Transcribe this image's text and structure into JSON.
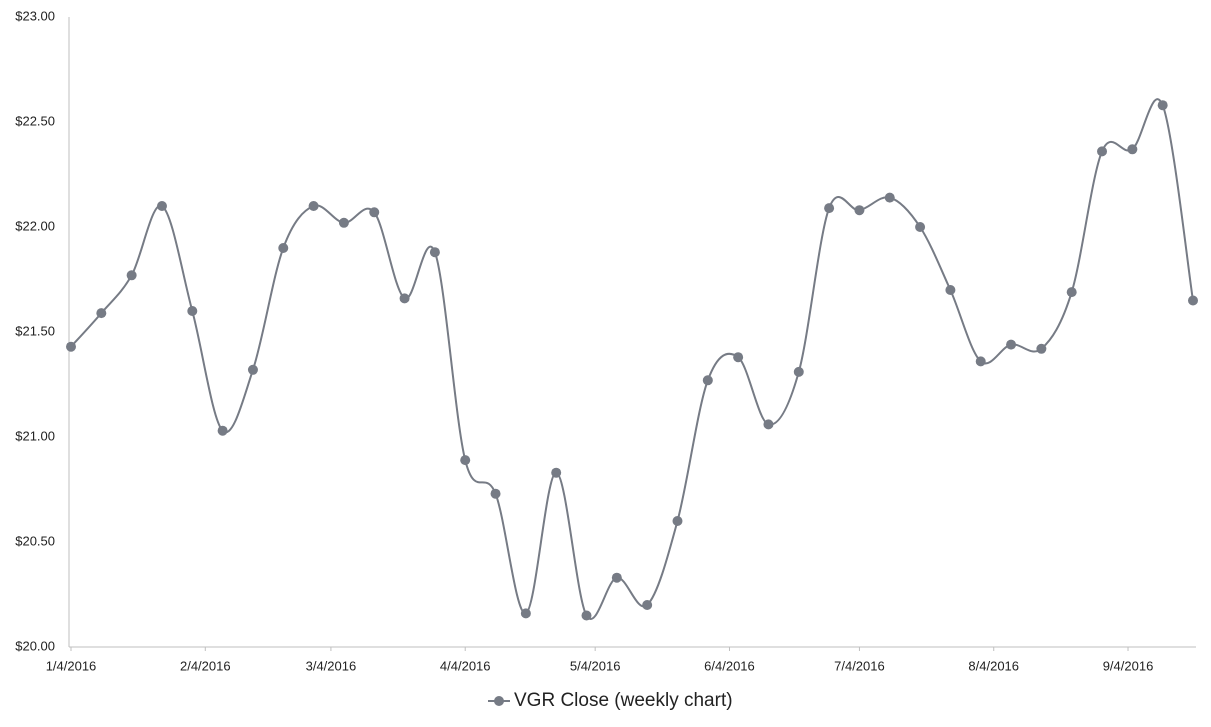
{
  "chart_data": {
    "type": "line",
    "x": [
      "1/4/2016",
      "1/11/2016",
      "1/18/2016",
      "1/25/2016",
      "2/1/2016",
      "2/8/2016",
      "2/15/2016",
      "2/22/2016",
      "2/29/2016",
      "3/7/2016",
      "3/14/2016",
      "3/21/2016",
      "3/28/2016",
      "4/4/2016",
      "4/11/2016",
      "4/18/2016",
      "4/25/2016",
      "5/2/2016",
      "5/9/2016",
      "5/16/2016",
      "5/23/2016",
      "5/30/2016",
      "6/6/2016",
      "6/13/2016",
      "6/20/2016",
      "6/27/2016",
      "7/4/2016",
      "7/11/2016",
      "7/18/2016",
      "7/25/2016",
      "8/1/2016",
      "8/8/2016",
      "8/15/2016",
      "8/22/2016",
      "8/29/2016",
      "9/5/2016",
      "9/12/2016",
      "9/19/2016"
    ],
    "series": [
      {
        "name": "VGR Close (weekly chart)",
        "color": "#767b85",
        "values": [
          21.43,
          21.59,
          21.77,
          22.1,
          21.6,
          21.03,
          21.32,
          21.9,
          22.1,
          22.02,
          22.07,
          21.66,
          21.88,
          20.89,
          20.73,
          20.16,
          20.83,
          20.15,
          20.33,
          20.2,
          20.6,
          21.27,
          21.38,
          21.06,
          21.31,
          22.09,
          22.08,
          22.14,
          22.0,
          21.7,
          21.36,
          21.44,
          21.42,
          21.69,
          22.36,
          22.37,
          22.58,
          21.65
        ]
      }
    ],
    "xlim": [
      "1/4/2016",
      "9/19/2016"
    ],
    "xticks": [
      "1/4/2016",
      "2/4/2016",
      "3/4/2016",
      "4/4/2016",
      "5/4/2016",
      "6/4/2016",
      "7/4/2016",
      "8/4/2016",
      "9/4/2016"
    ],
    "ylim": [
      20,
      23
    ],
    "yticks": [
      {
        "value": 20,
        "label": "$20.00"
      },
      {
        "value": 20.5,
        "label": "$20.50"
      },
      {
        "value": 21,
        "label": "$21.00"
      },
      {
        "value": 21.5,
        "label": "$21.50"
      },
      {
        "value": 22,
        "label": "$22.00"
      },
      {
        "value": 22.5,
        "label": "$22.50"
      },
      {
        "value": 23,
        "label": "$23.00"
      }
    ],
    "grid": false,
    "legend": "bottom"
  }
}
